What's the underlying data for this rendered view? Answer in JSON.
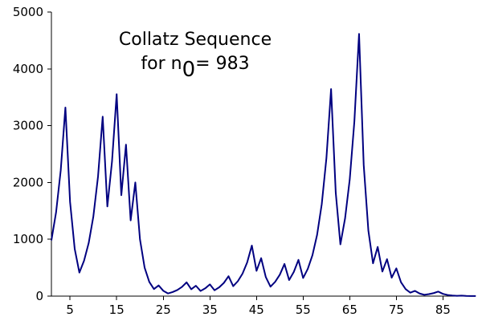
{
  "chart_data": {
    "type": "line",
    "title": {
      "line1": "Collatz Sequence",
      "line2_pre": "for n",
      "line2_sub": "0",
      "line2_post": "= 983"
    },
    "xlabel": "",
    "ylabel": "",
    "xlim": [
      1,
      92
    ],
    "ylim": [
      0,
      5000
    ],
    "xticks": [
      5,
      15,
      25,
      35,
      45,
      55,
      65,
      75,
      85
    ],
    "yticks": [
      0,
      1000,
      2000,
      3000,
      4000,
      5000
    ],
    "grid": false,
    "legend": "none",
    "series": [
      {
        "color": "#000080",
        "x": [
          1,
          2,
          3,
          4,
          5,
          6,
          7,
          8,
          9,
          10,
          11,
          12,
          13,
          14,
          15,
          16,
          17,
          18,
          19,
          20,
          21,
          22,
          23,
          24,
          25,
          26,
          27,
          28,
          29,
          30,
          31,
          32,
          33,
          34,
          35,
          36,
          37,
          38,
          39,
          40,
          41,
          42,
          43,
          44,
          45,
          46,
          47,
          48,
          49,
          50,
          51,
          52,
          53,
          54,
          55,
          56,
          57,
          58,
          59,
          60,
          61,
          62,
          63,
          64,
          65,
          66,
          67,
          68,
          69,
          70,
          71,
          72,
          73,
          74,
          75,
          76,
          77,
          78,
          79,
          80,
          81,
          82,
          83,
          84,
          85,
          86,
          87,
          88,
          89,
          90,
          91,
          92
        ],
        "y": [
          983,
          1475,
          2213,
          3320,
          1660,
          830,
          415,
          623,
          935,
          1403,
          2105,
          3158,
          1579,
          2369,
          3554,
          1777,
          2666,
          1333,
          2000,
          1000,
          500,
          250,
          125,
          188,
          94,
          47,
          71,
          107,
          161,
          242,
          121,
          182,
          91,
          137,
          206,
          103,
          155,
          233,
          350,
          175,
          263,
          395,
          593,
          890,
          445,
          668,
          334,
          167,
          251,
          377,
          566,
          283,
          425,
          638,
          319,
          479,
          719,
          1079,
          1619,
          2429,
          3644,
          1822,
          911,
          1367,
          2051,
          3077,
          4616,
          2308,
          1154,
          577,
          866,
          433,
          650,
          325,
          488,
          244,
          122,
          61,
          92,
          46,
          23,
          35,
          53,
          80,
          40,
          20,
          10,
          5,
          8,
          4,
          2,
          1
        ]
      }
    ]
  }
}
